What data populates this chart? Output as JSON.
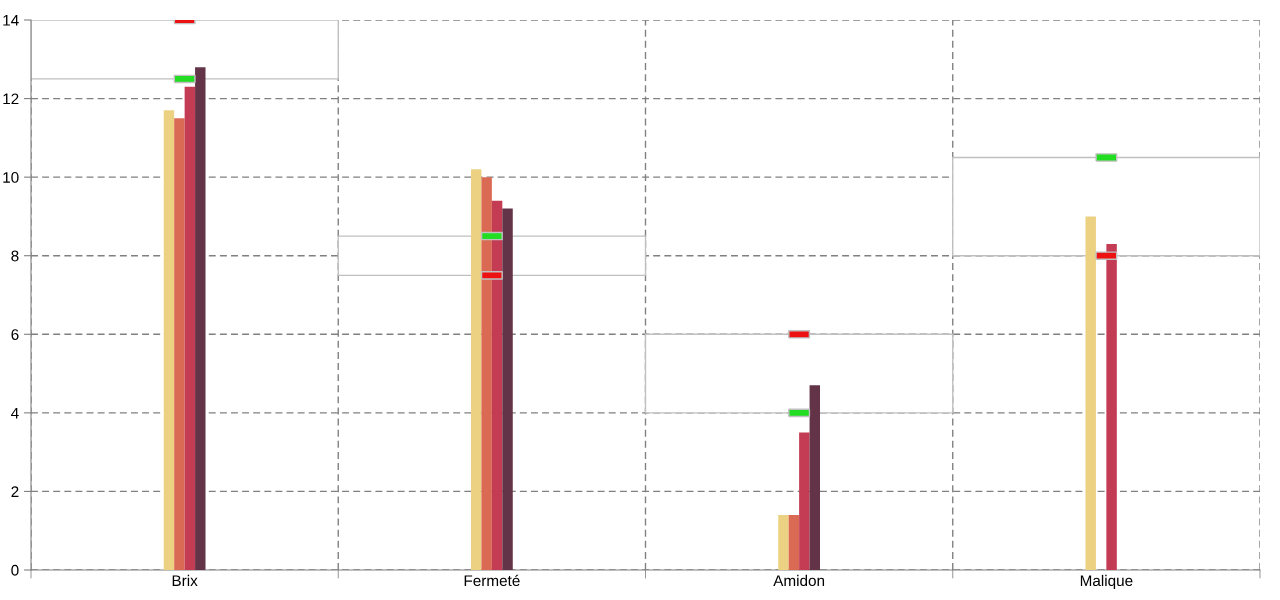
{
  "chart_data": {
    "type": "bar",
    "categories": [
      "Brix",
      "Fermeté",
      "Amidon",
      "Malique"
    ],
    "series": [
      {
        "color": "#ffffff",
        "base": [
          12.5,
          7.5,
          4,
          8
        ],
        "values": [
          1.5,
          1,
          2,
          2.5
        ]
      },
      {
        "color": "#ecd182",
        "values": [
          11.7,
          10.2,
          1.4,
          9.0
        ]
      },
      {
        "color": "#db6a54",
        "values": [
          11.5,
          10.0,
          1.4,
          0
        ]
      },
      {
        "color": "#c33c54",
        "values": [
          12.3,
          9.4,
          3.5,
          8.3
        ]
      },
      {
        "color": "#633448",
        "values": [
          12.8,
          9.2,
          4.7,
          0
        ]
      },
      {
        "type": "scatter",
        "color": "#22dd22",
        "x": [
          "Brix",
          "Fermeté",
          "Amidon",
          "Malique"
        ],
        "values": [
          12.5,
          8.5,
          4,
          10.5
        ]
      },
      {
        "type": "scatter",
        "color": "#ee1111",
        "x": [
          "Brix",
          "Fermeté",
          "Amidon",
          "Malique"
        ],
        "values": [
          14,
          7.5,
          6,
          8
        ]
      }
    ],
    "ylim": [
      0,
      14
    ],
    "yticks": [
      0,
      2,
      4,
      6,
      8,
      10,
      12,
      14
    ],
    "grid": true
  }
}
